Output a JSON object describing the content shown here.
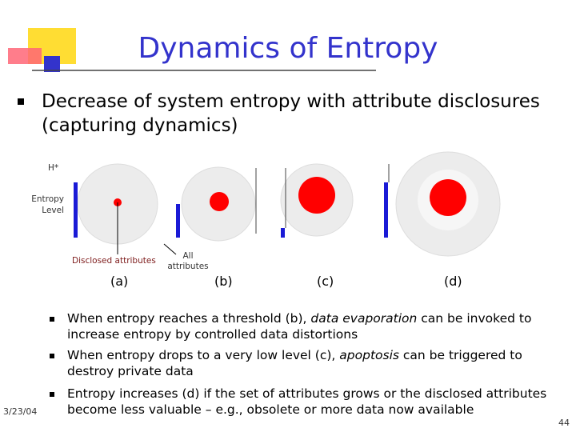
{
  "title": "Dynamics of Entropy",
  "main_bullet": "Decrease of system entropy with attribute disclosures (capturing dynamics)",
  "diagram": {
    "h_star": "H*",
    "entropy_level": "Entropy Level",
    "disclosed_attributes": "Disclosed attributes",
    "all_attributes": "All attributes",
    "panels": [
      "(a)",
      "(b)",
      "(c)",
      "(d)"
    ]
  },
  "sub_bullets": [
    {
      "before": "When entropy reaches a threshold (b), ",
      "emphasis": "data evaporation",
      "after": " can be invoked to increase entropy by controlled data distortions"
    },
    {
      "before": "When entropy drops to a very low level (c), ",
      "emphasis": "apoptosis",
      "after": " can be triggered to destroy private data"
    },
    {
      "text": "Entropy increases (d) if the set of attributes grows or the disclosed attributes become less valuable – e.g., obsolete or more data now available"
    }
  ],
  "footer": {
    "date": "3/23/04",
    "page": "44"
  }
}
